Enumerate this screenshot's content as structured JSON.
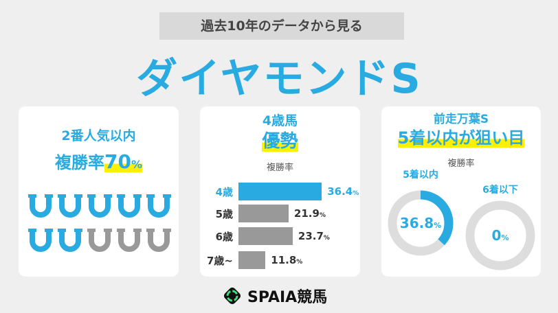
{
  "header": {
    "subtitle": "過去10年のデータから見る",
    "title": "ダイヤモンドS"
  },
  "card1": {
    "heading": "2番人気以内",
    "metric_label": "複勝率",
    "metric_value": "70",
    "unit": "%",
    "icon": "horseshoe-icon",
    "hit_count": 7,
    "total_count": 10
  },
  "card2": {
    "heading": "4歳馬",
    "emphasis": "優勢",
    "label": "複勝率"
  },
  "card3": {
    "heading": "前走万葉S",
    "emphasis": "5着以内が狙い目",
    "label": "複勝率"
  },
  "chart_data": [
    {
      "type": "bar",
      "orientation": "horizontal",
      "ylabel": "複勝率",
      "categories": [
        "4歳",
        "5歳",
        "6歳",
        "7歳~"
      ],
      "values": [
        36.4,
        21.9,
        23.7,
        11.8
      ],
      "value_labels": [
        "36.4",
        "21.9",
        "23.7",
        "11.8"
      ],
      "unit": "%",
      "colors": [
        "#29abe2",
        "#999999",
        "#999999",
        "#999999"
      ]
    },
    {
      "type": "pie",
      "style": "donut",
      "categories": [
        "5着以内",
        "6着以下"
      ],
      "values": [
        36.8,
        0
      ],
      "value_labels": [
        "36.8",
        "0"
      ],
      "unit": "%"
    }
  ],
  "colors": {
    "accent": "#29abe2",
    "highlight": "#fff000",
    "muted": "#999999",
    "track": "#dddddd"
  },
  "footer": {
    "logo_text": "SPAIA競馬"
  }
}
